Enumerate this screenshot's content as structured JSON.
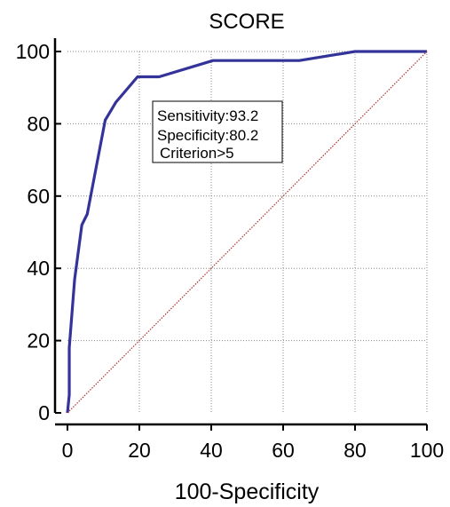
{
  "chart_data": {
    "type": "line",
    "title": "SCORE",
    "xlabel": "100-Specificity",
    "ylabel": "",
    "xlim": [
      0,
      100
    ],
    "ylim": [
      0,
      100
    ],
    "x_ticks": [
      0,
      20,
      40,
      60,
      80,
      100
    ],
    "y_ticks": [
      0,
      20,
      40,
      60,
      80,
      100
    ],
    "grid": true,
    "series": [
      {
        "color": "#33339a",
        "points": [
          [
            0,
            0
          ],
          [
            0.5,
            5
          ],
          [
            0.5,
            18
          ],
          [
            2,
            37
          ],
          [
            4,
            52
          ],
          [
            5.5,
            55
          ],
          [
            8,
            68
          ],
          [
            10.5,
            81
          ],
          [
            13.5,
            86
          ],
          [
            19.5,
            93
          ],
          [
            25.5,
            93
          ],
          [
            40.5,
            97.5
          ],
          [
            64.5,
            97.5
          ],
          [
            80,
            100
          ],
          [
            100,
            100
          ]
        ]
      },
      {
        "color": "#b03030",
        "style": "dotted",
        "points": [
          [
            0,
            0
          ],
          [
            100,
            100
          ]
        ]
      }
    ],
    "annotation": {
      "lines": [
        "Sensitivity:93.2",
        "Specificity:80.2",
        "Criterion>5"
      ]
    }
  }
}
